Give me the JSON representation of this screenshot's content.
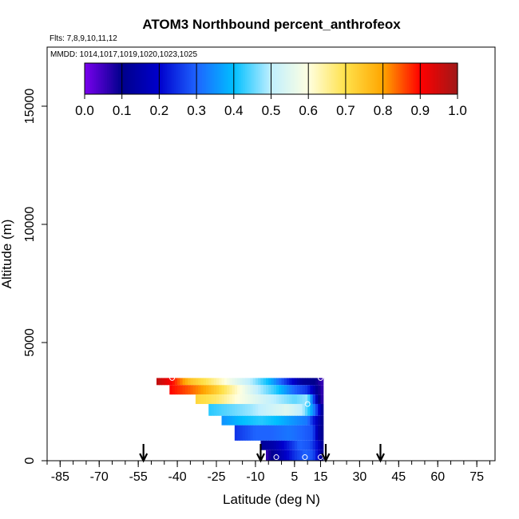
{
  "chart_data": {
    "type": "heatmap",
    "title": "ATOM3 Northbound percent_anthrofeox",
    "subtitle_flights": "Flts: 7,8,9,10,11,12",
    "subtitle_dates": "MMDD: 1014,1017,1019,1020,1023,1025",
    "xlabel": "Latitude (deg N)",
    "ylabel": "Altitude (m)",
    "xlim": [
      -90,
      82
    ],
    "ylim": [
      0,
      17500
    ],
    "x_ticks": [
      -85,
      -70,
      -55,
      -40,
      -25,
      -10,
      5,
      15,
      30,
      45,
      60,
      75
    ],
    "x_minor_step": 5,
    "y_ticks": [
      0,
      5000,
      10000,
      15000
    ],
    "colorbar": {
      "min": 0.0,
      "max": 1.0,
      "tick_labels": [
        "0.0",
        "0.1",
        "0.2",
        "0.3",
        "0.4",
        "0.5",
        "0.6",
        "0.7",
        "0.8",
        "0.9",
        "1.0"
      ],
      "colors": [
        "#7a00ee",
        "#00008b",
        "#0000cd",
        "#1e64ff",
        "#00bfff",
        "#bfefff",
        "#ffffe0",
        "#ffe14a",
        "#ffa500",
        "#ff0000",
        "#a01818"
      ]
    },
    "rows": [
      {
        "alt_min": 3200,
        "alt_max": 3500,
        "lat_min": -48,
        "lat_max": 16,
        "stops": [
          [
            -48,
            0.97
          ],
          [
            -42,
            0.9
          ],
          [
            -35,
            0.75
          ],
          [
            -28,
            0.68
          ],
          [
            -20,
            0.58
          ],
          [
            -12,
            0.5
          ],
          [
            -5,
            0.4
          ],
          [
            2,
            0.25
          ],
          [
            8,
            0.12
          ],
          [
            13,
            0.1
          ],
          [
            16,
            0.05
          ]
        ]
      },
      {
        "alt_min": 2800,
        "alt_max": 3200,
        "lat_min": -43,
        "lat_max": 16,
        "stops": [
          [
            -43,
            0.9
          ],
          [
            -36,
            0.85
          ],
          [
            -30,
            0.8
          ],
          [
            -24,
            0.72
          ],
          [
            -16,
            0.6
          ],
          [
            -9,
            0.5
          ],
          [
            -2,
            0.42
          ],
          [
            5,
            0.3
          ],
          [
            10,
            0.25
          ],
          [
            14,
            0.1
          ],
          [
            16,
            0.05
          ]
        ]
      },
      {
        "alt_min": 2400,
        "alt_max": 2800,
        "lat_min": -33,
        "lat_max": 16,
        "stops": [
          [
            -33,
            0.72
          ],
          [
            -25,
            0.68
          ],
          [
            -17,
            0.6
          ],
          [
            -10,
            0.55
          ],
          [
            -3,
            0.5
          ],
          [
            5,
            0.45
          ],
          [
            10,
            0.48
          ],
          [
            12,
            0.3
          ],
          [
            14,
            0.12
          ],
          [
            16,
            0.05
          ]
        ]
      },
      {
        "alt_min": 1900,
        "alt_max": 2400,
        "lat_min": -28,
        "lat_max": 16,
        "stops": [
          [
            -28,
            0.42
          ],
          [
            -20,
            0.45
          ],
          [
            -12,
            0.48
          ],
          [
            -5,
            0.52
          ],
          [
            2,
            0.55
          ],
          [
            8,
            0.5
          ],
          [
            11,
            0.4
          ],
          [
            13,
            0.3
          ],
          [
            16,
            0.1
          ]
        ]
      },
      {
        "alt_min": 1500,
        "alt_max": 1900,
        "lat_min": -23,
        "lat_max": 16,
        "stops": [
          [
            -23,
            0.35
          ],
          [
            -15,
            0.4
          ],
          [
            -8,
            0.42
          ],
          [
            -2,
            0.4
          ],
          [
            5,
            0.35
          ],
          [
            10,
            0.32
          ],
          [
            13,
            0.2
          ],
          [
            16,
            0.1
          ]
        ]
      },
      {
        "alt_min": 850,
        "alt_max": 1500,
        "lat_min": -18,
        "lat_max": 16,
        "stops": [
          [
            -18,
            0.25
          ],
          [
            -10,
            0.3
          ],
          [
            -4,
            0.3
          ],
          [
            3,
            0.32
          ],
          [
            8,
            0.3
          ],
          [
            12,
            0.28
          ],
          [
            14,
            0.15
          ],
          [
            16,
            0.1
          ]
        ]
      },
      {
        "alt_min": 450,
        "alt_max": 850,
        "lat_min": -8,
        "lat_max": 16,
        "stops": [
          [
            -8,
            0.12
          ],
          [
            -3,
            0.15
          ],
          [
            2,
            0.22
          ],
          [
            7,
            0.3
          ],
          [
            11,
            0.28
          ],
          [
            14,
            0.2
          ],
          [
            16,
            0.1
          ]
        ]
      },
      {
        "alt_min": 0,
        "alt_max": 450,
        "lat_min": -6,
        "lat_max": 16,
        "stops": [
          [
            -6,
            0.05
          ],
          [
            -3,
            0.12
          ],
          [
            1,
            0.18
          ],
          [
            5,
            0.25
          ],
          [
            9,
            0.3
          ],
          [
            12,
            0.28
          ],
          [
            14,
            0.2
          ],
          [
            16,
            0.08
          ]
        ]
      }
    ],
    "sample_points": [
      {
        "lat": -49,
        "alt": 3150
      },
      {
        "lat": -42,
        "alt": 3500
      },
      {
        "lat": 15,
        "alt": 3500
      },
      {
        "lat": 10,
        "alt": 2400
      },
      {
        "lat": -2,
        "alt": 150
      },
      {
        "lat": 9,
        "alt": 150
      },
      {
        "lat": 15,
        "alt": 150
      }
    ],
    "arrows": [
      -53,
      -8,
      17,
      38
    ]
  }
}
